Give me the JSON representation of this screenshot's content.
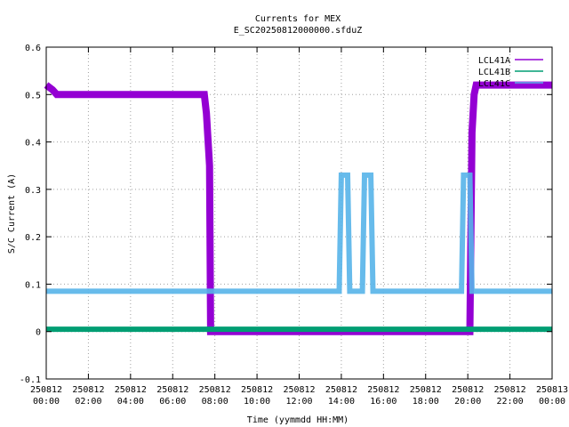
{
  "chart_data": {
    "type": "line",
    "title": "Currents for MEX",
    "subtitle": "E_SC20250812000000.sfduZ",
    "xlabel": "Time (yymmdd HH:MM)",
    "ylabel": "S/C Current (A)",
    "xlim": [
      0,
      24
    ],
    "ylim": [
      -0.1,
      0.6
    ],
    "grid": true,
    "legend_position": "top-right",
    "x_ticks": [
      {
        "x": 0,
        "line1": "250812",
        "line2": "00:00"
      },
      {
        "x": 2,
        "line1": "250812",
        "line2": "02:00"
      },
      {
        "x": 4,
        "line1": "250812",
        "line2": "04:00"
      },
      {
        "x": 6,
        "line1": "250812",
        "line2": "06:00"
      },
      {
        "x": 8,
        "line1": "250812",
        "line2": "08:00"
      },
      {
        "x": 10,
        "line1": "250812",
        "line2": "10:00"
      },
      {
        "x": 12,
        "line1": "250812",
        "line2": "12:00"
      },
      {
        "x": 14,
        "line1": "250812",
        "line2": "14:00"
      },
      {
        "x": 16,
        "line1": "250812",
        "line2": "16:00"
      },
      {
        "x": 18,
        "line1": "250812",
        "line2": "18:00"
      },
      {
        "x": 20,
        "line1": "250812",
        "line2": "20:00"
      },
      {
        "x": 22,
        "line1": "250812",
        "line2": "22:00"
      },
      {
        "x": 24,
        "line1": "250813",
        "line2": "00:00"
      }
    ],
    "y_ticks": [
      {
        "y": -0.1,
        "label": "-0.1"
      },
      {
        "y": 0,
        "label": "0"
      },
      {
        "y": 0.1,
        "label": "0.1"
      },
      {
        "y": 0.2,
        "label": "0.2"
      },
      {
        "y": 0.3,
        "label": "0.3"
      },
      {
        "y": 0.4,
        "label": "0.4"
      },
      {
        "y": 0.5,
        "label": "0.5"
      },
      {
        "y": 0.6,
        "label": "0.6"
      }
    ],
    "series": [
      {
        "name": "LCL41A",
        "color": "#9400d3",
        "points": [
          [
            0,
            0.52
          ],
          [
            0.3,
            0.51
          ],
          [
            0.5,
            0.5
          ],
          [
            2,
            0.5
          ],
          [
            4,
            0.5
          ],
          [
            6,
            0.5
          ],
          [
            7.5,
            0.5
          ],
          [
            7.6,
            0.46
          ],
          [
            7.75,
            0.35
          ],
          [
            7.8,
            0.0
          ],
          [
            10,
            0.0
          ],
          [
            14,
            0.0
          ],
          [
            18,
            0.0
          ],
          [
            20.1,
            0.0
          ],
          [
            20.2,
            0.42
          ],
          [
            20.3,
            0.5
          ],
          [
            20.4,
            0.52
          ],
          [
            22,
            0.52
          ],
          [
            24,
            0.52
          ]
        ]
      },
      {
        "name": "LCL41B",
        "color": "#009e73",
        "points": [
          [
            0,
            0.005
          ],
          [
            4,
            0.005
          ],
          [
            8,
            0.005
          ],
          [
            12,
            0.005
          ],
          [
            16,
            0.005
          ],
          [
            20,
            0.005
          ],
          [
            24,
            0.005
          ]
        ]
      },
      {
        "name": "LCL41C",
        "color": "#56b4e9",
        "points": [
          [
            0,
            0.085
          ],
          [
            6,
            0.085
          ],
          [
            12,
            0.085
          ],
          [
            13.9,
            0.085
          ],
          [
            14.0,
            0.33
          ],
          [
            14.3,
            0.33
          ],
          [
            14.4,
            0.085
          ],
          [
            15.0,
            0.085
          ],
          [
            15.1,
            0.33
          ],
          [
            15.4,
            0.33
          ],
          [
            15.5,
            0.085
          ],
          [
            19.7,
            0.085
          ],
          [
            19.8,
            0.33
          ],
          [
            20.1,
            0.33
          ],
          [
            20.2,
            0.085
          ],
          [
            24,
            0.085
          ]
        ]
      }
    ]
  }
}
